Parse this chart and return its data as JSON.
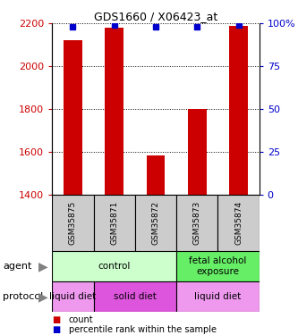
{
  "title": "GDS1660 / X06423_at",
  "samples": [
    "GSM35875",
    "GSM35871",
    "GSM35872",
    "GSM35873",
    "GSM35874"
  ],
  "counts": [
    2120,
    2180,
    1580,
    1800,
    2190
  ],
  "percentiles": [
    98,
    99,
    98,
    98,
    99
  ],
  "ylim_left": [
    1400,
    2200
  ],
  "yticks_left": [
    1400,
    1600,
    1800,
    2000,
    2200
  ],
  "ylim_right": [
    0,
    100
  ],
  "yticks_right": [
    0,
    25,
    50,
    75,
    100
  ],
  "bar_color": "#cc0000",
  "dot_color": "#0000cc",
  "agent_groups": [
    {
      "label": "control",
      "span": [
        0,
        3
      ],
      "color": "#ccffcc"
    },
    {
      "label": "fetal alcohol\nexposure",
      "span": [
        3,
        5
      ],
      "color": "#66ee66"
    }
  ],
  "protocol_groups": [
    {
      "label": "liquid diet",
      "span": [
        0,
        1
      ],
      "color": "#ee99ee"
    },
    {
      "label": "solid diet",
      "span": [
        1,
        3
      ],
      "color": "#dd55dd"
    },
    {
      "label": "liquid diet",
      "span": [
        3,
        5
      ],
      "color": "#ee99ee"
    }
  ],
  "sample_box_color": "#cccccc",
  "legend_count_color": "#cc0000",
  "legend_pct_color": "#0000cc",
  "bar_width": 0.45
}
